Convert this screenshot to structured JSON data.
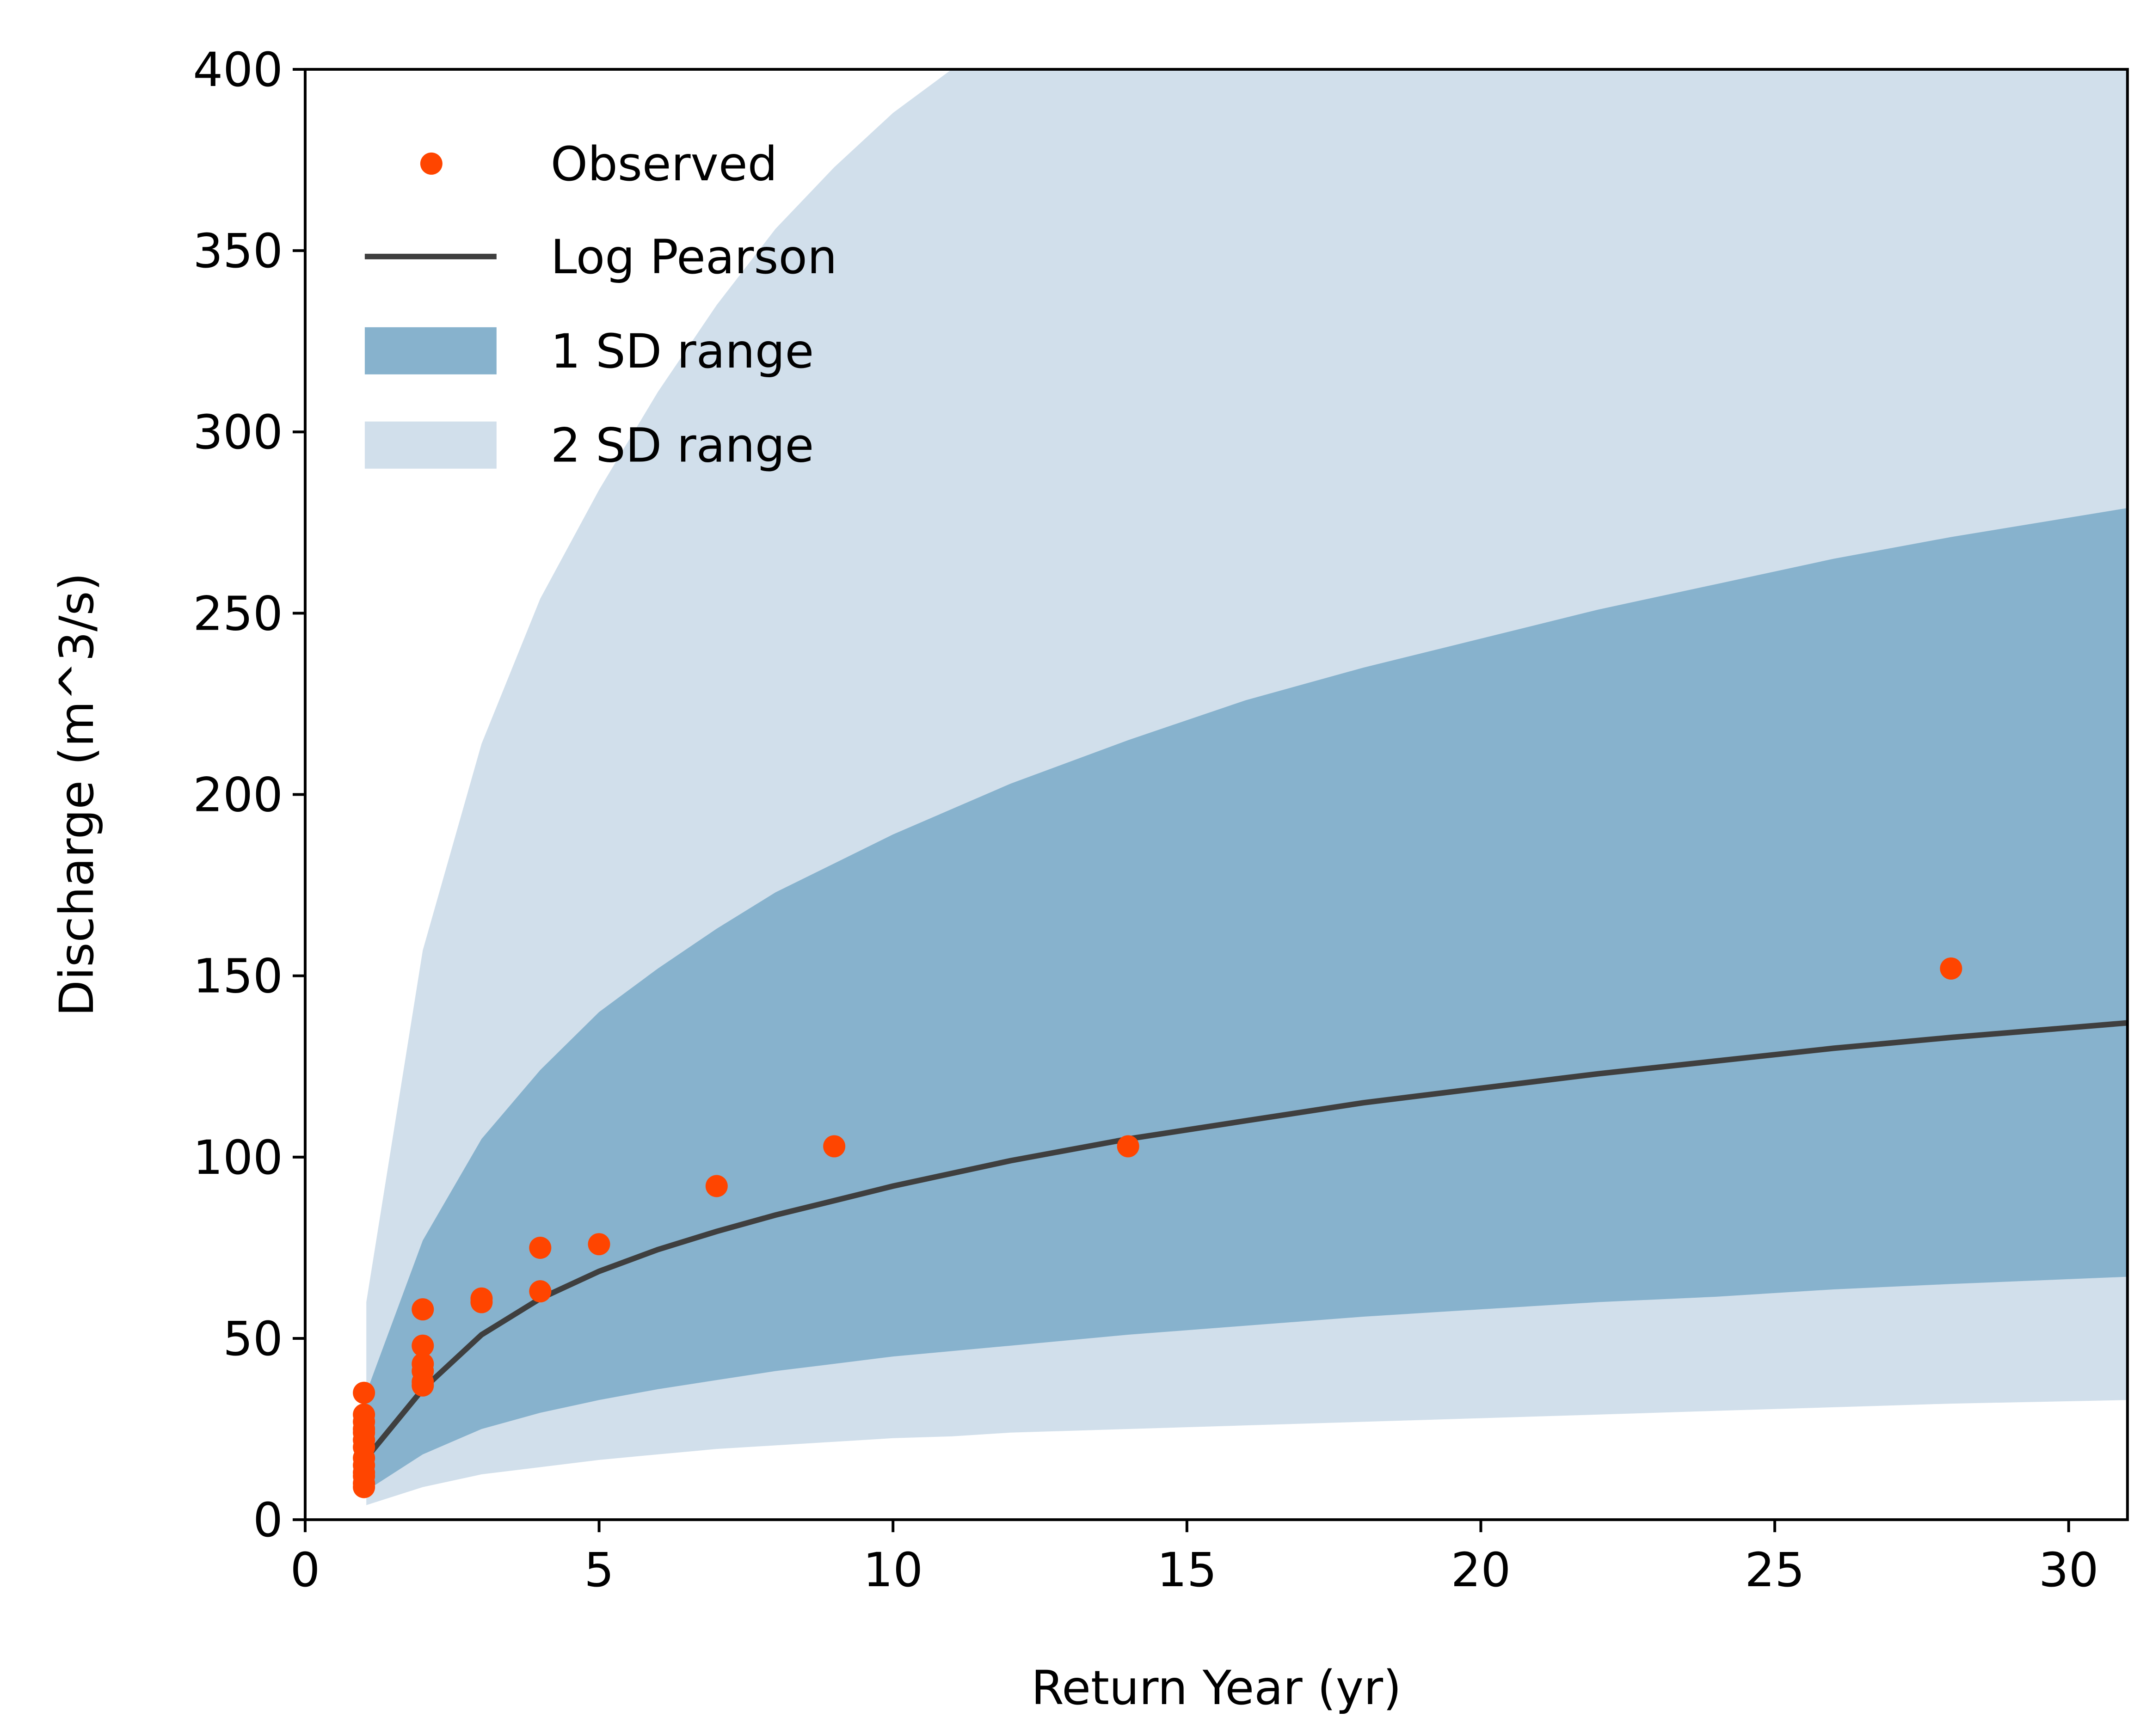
{
  "chart_data": {
    "type": "line",
    "title": "",
    "xlabel": "Return Year (yr)",
    "ylabel": "Discharge (m^3/s)",
    "xlim": [
      0,
      31
    ],
    "ylim": [
      0,
      400
    ],
    "xticks": [
      0,
      5,
      10,
      15,
      20,
      25,
      30
    ],
    "yticks": [
      0,
      50,
      100,
      150,
      200,
      250,
      300,
      350,
      400
    ],
    "grid": false,
    "legend_position": "top-left",
    "colors": {
      "observed": "#ff4500",
      "log_pearson": "#3f3f3f",
      "band_1sd": "#87b2cd",
      "band_2sd": "#d1dfeb"
    },
    "legend": [
      {
        "key": "observed",
        "label": "Observed"
      },
      {
        "key": "log_pearson",
        "label": "Log Pearson"
      },
      {
        "key": "band_1sd",
        "label": "1 SD range"
      },
      {
        "key": "band_2sd",
        "label": "2 SD range"
      }
    ],
    "log_pearson": {
      "x": [
        1.04,
        2,
        3,
        4,
        5,
        6,
        7,
        8,
        9,
        10,
        12,
        14,
        16,
        18,
        20,
        22,
        24,
        26,
        28,
        31
      ],
      "y": [
        17,
        36,
        51,
        61,
        68.5,
        74.5,
        79.5,
        84,
        88,
        92,
        99,
        105,
        110,
        115,
        119,
        123,
        126.5,
        130,
        133,
        137
      ]
    },
    "band_1sd": {
      "x": [
        1.04,
        2,
        3,
        4,
        5,
        6,
        7,
        8,
        9,
        10,
        12,
        14,
        16,
        18,
        20,
        22,
        24,
        26,
        28,
        31
      ],
      "upper": [
        35,
        77,
        105,
        124,
        140,
        152,
        163,
        173,
        181,
        189,
        203,
        215,
        226,
        235,
        243,
        251,
        258,
        265,
        271,
        279
      ],
      "lower": [
        8,
        18,
        25,
        29.5,
        33,
        36,
        38.5,
        41,
        43,
        45,
        48,
        51,
        53.5,
        56,
        58,
        60,
        61.5,
        63.5,
        65,
        67
      ]
    },
    "band_2sd": {
      "x": [
        1.04,
        2,
        3,
        4,
        5,
        6,
        7,
        8,
        9,
        10,
        11,
        12,
        14,
        16,
        18,
        20,
        22,
        24,
        26,
        28,
        31
      ],
      "upper": [
        60,
        157,
        214,
        254,
        284,
        311,
        335,
        356,
        373,
        388,
        400,
        412,
        432,
        450,
        466,
        480,
        493,
        505,
        515,
        525,
        540
      ],
      "lower": [
        4,
        9,
        12.5,
        14.5,
        16.5,
        18,
        19.5,
        20.5,
        21.5,
        22.5,
        23,
        24,
        25,
        26,
        27,
        28,
        29,
        30,
        31,
        32,
        33
      ]
    },
    "observed": {
      "x": [
        28,
        14,
        9,
        7,
        5,
        4,
        4,
        3,
        3,
        2,
        2,
        2,
        2,
        2,
        2,
        1,
        1,
        1,
        1,
        1,
        1,
        1,
        1,
        1,
        1,
        1,
        1,
        1
      ],
      "y": [
        152,
        103,
        103,
        92,
        76,
        75,
        63,
        61,
        60,
        58,
        48,
        43,
        41,
        38,
        37,
        35,
        29,
        27,
        25,
        24,
        22,
        20,
        17,
        15,
        13,
        12,
        10,
        9
      ]
    }
  }
}
